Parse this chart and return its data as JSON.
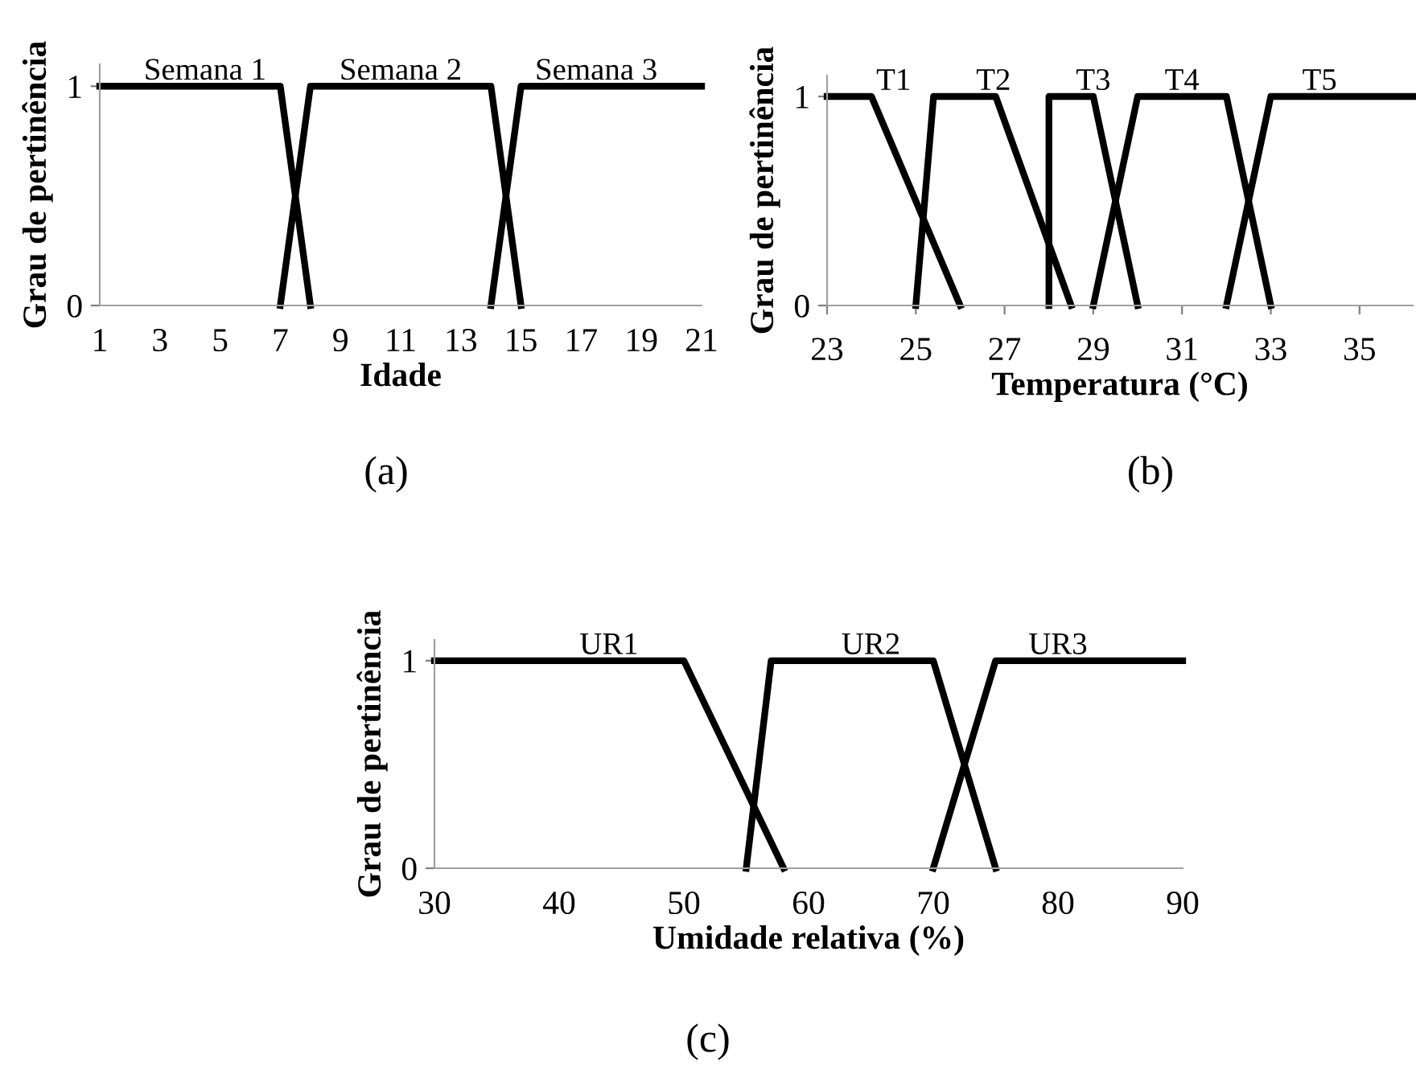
{
  "chart_data": [
    {
      "type": "line",
      "xlabel": "Idade",
      "ylabel": "Grau de pertinência",
      "annotations": [
        "(a)"
      ],
      "xlim": [
        1,
        21
      ],
      "xticks": [
        1,
        3,
        5,
        7,
        9,
        11,
        13,
        15,
        17,
        19,
        21
      ],
      "ylim": [
        0,
        1.1
      ],
      "yticks": [
        0,
        1
      ],
      "grid": false,
      "legend": false,
      "marker": "none",
      "line_style": "solid",
      "series": [
        {
          "name": "Semana 1",
          "color": "#000000",
          "x": [
            1,
            7,
            8
          ],
          "values": [
            1,
            1,
            0
          ]
        },
        {
          "name": "Semana 2",
          "color": "#000000",
          "x": [
            7,
            8,
            14,
            15
          ],
          "values": [
            0,
            1,
            1,
            0
          ]
        },
        {
          "name": "Semana 3",
          "color": "#000000",
          "x": [
            14,
            15,
            21
          ],
          "values": [
            0,
            1,
            1
          ]
        }
      ]
    },
    {
      "type": "line",
      "xlabel": "Temperatura (°C)",
      "ylabel": "Grau de pertinência",
      "annotations": [
        "(b)"
      ],
      "xlim": [
        23,
        36.2
      ],
      "xticks": [
        23,
        25,
        27,
        29,
        31,
        33,
        35
      ],
      "ylim": [
        0,
        1.1
      ],
      "yticks": [
        0,
        1
      ],
      "grid": false,
      "legend": false,
      "marker": "none",
      "line_style": "solid",
      "series": [
        {
          "name": "T1",
          "color": "#000000",
          "x": [
            23,
            24,
            26
          ],
          "values": [
            1,
            1,
            0
          ]
        },
        {
          "name": "T2",
          "color": "#000000",
          "x": [
            25,
            25.4,
            26.8,
            28.5
          ],
          "values": [
            0,
            1,
            1,
            0
          ]
        },
        {
          "name": "T3",
          "color": "#000000",
          "x": [
            28,
            28,
            29,
            30
          ],
          "values": [
            0,
            1,
            1,
            0
          ]
        },
        {
          "name": "T4",
          "color": "#000000",
          "x": [
            29,
            30,
            32,
            33
          ],
          "values": [
            0,
            1,
            1,
            0
          ]
        },
        {
          "name": "T5",
          "color": "#000000",
          "x": [
            32,
            33,
            36.2
          ],
          "values": [
            0,
            1,
            1
          ]
        }
      ]
    },
    {
      "type": "line",
      "xlabel": "Umidade relativa (%)",
      "ylabel": "Grau de pertinência",
      "annotations": [
        "(c)"
      ],
      "xlim": [
        30,
        90
      ],
      "xticks": [
        30,
        40,
        50,
        60,
        70,
        80,
        90
      ],
      "ylim": [
        0,
        1.1
      ],
      "yticks": [
        0,
        1
      ],
      "grid": false,
      "legend": false,
      "marker": "none",
      "line_style": "solid",
      "series": [
        {
          "name": "UR1",
          "color": "#000000",
          "x": [
            30,
            50,
            58
          ],
          "values": [
            1,
            1,
            0
          ]
        },
        {
          "name": "UR2",
          "color": "#000000",
          "x": [
            55,
            57,
            70,
            75
          ],
          "values": [
            0,
            1,
            1,
            0
          ]
        },
        {
          "name": "UR3",
          "color": "#000000",
          "x": [
            70,
            75,
            90
          ],
          "values": [
            0,
            1,
            1
          ]
        }
      ]
    }
  ]
}
